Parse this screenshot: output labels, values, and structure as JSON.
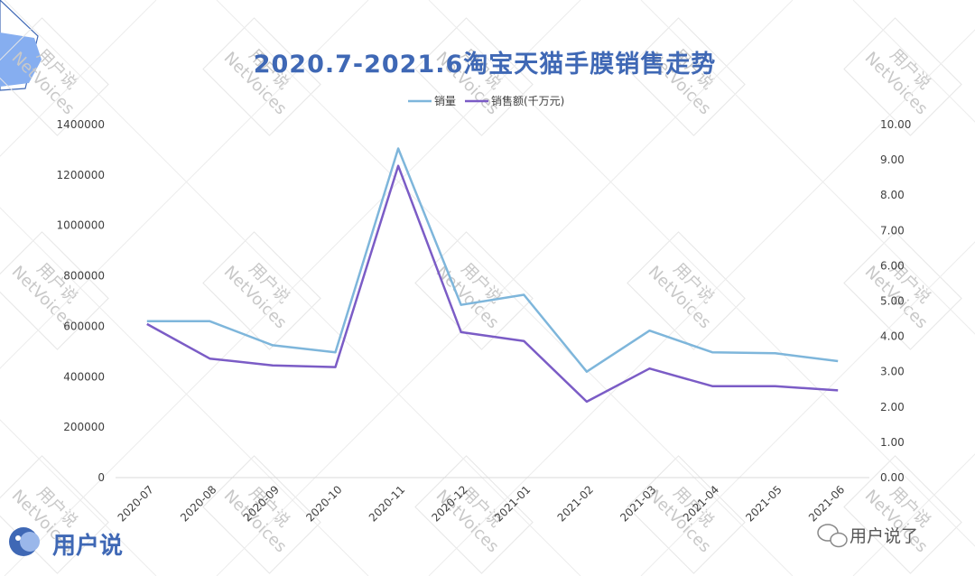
{
  "logo": {
    "text": "用户说"
  },
  "wechat_tag": {
    "text": "用户说了"
  },
  "watermark": {
    "text": "NetVoices",
    "text_cn": "用户说"
  },
  "colors": {
    "title": "#3f68b5",
    "series_volume": "#7eb6db",
    "series_sales": "#7b5cc6",
    "grid": "#d9d9d9"
  },
  "chart_data": {
    "type": "line",
    "title": "2020.7-2021.6淘宝天猫手膜销售走势",
    "categories": [
      "2020-07",
      "2020-08",
      "2020-09",
      "2020-10",
      "2020-11",
      "2020-12",
      "2021-01",
      "2021-02",
      "2021-03",
      "2021-04",
      "2021-05",
      "2021-06"
    ],
    "series": [
      {
        "name": "销量",
        "axis": "left",
        "values": [
          620000,
          620000,
          525000,
          497000,
          1305000,
          685000,
          725000,
          420000,
          583000,
          497000,
          493000,
          462000
        ]
      },
      {
        "name": "销售额(千万元)",
        "axis": "right",
        "values": [
          4.35,
          3.37,
          3.18,
          3.13,
          8.83,
          4.12,
          3.87,
          2.15,
          3.09,
          2.59,
          2.59,
          2.47
        ]
      }
    ],
    "y_left": {
      "min": 0,
      "max": 1400000,
      "step": 200000,
      "ticks": [
        "0",
        "200000",
        "400000",
        "600000",
        "800000",
        "1000000",
        "1200000",
        "1400000"
      ]
    },
    "y_right": {
      "min": 0,
      "max": 10,
      "step": 1,
      "ticks": [
        "0.00",
        "1.00",
        "2.00",
        "3.00",
        "4.00",
        "5.00",
        "6.00",
        "7.00",
        "8.00",
        "9.00",
        "10.00"
      ]
    },
    "legend_position": "top-center",
    "grid": false
  }
}
